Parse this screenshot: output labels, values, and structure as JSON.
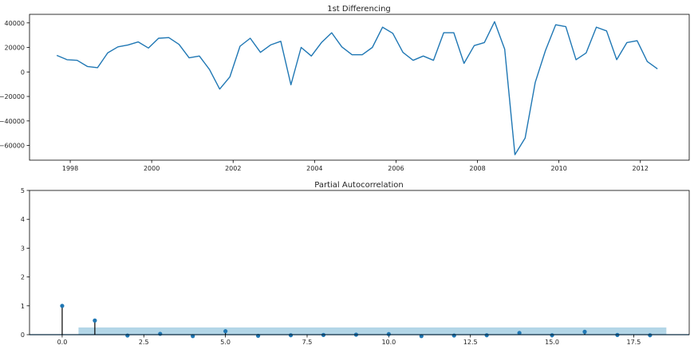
{
  "chart_data": [
    {
      "type": "line",
      "title": "1st Differencing",
      "xlabel": "",
      "ylabel": "",
      "xlim": [
        1997.0,
        2013.2
      ],
      "ylim": [
        -72000,
        47000
      ],
      "x_ticks": [
        "1998",
        "2000",
        "2002",
        "2004",
        "2006",
        "2008",
        "2010",
        "2012"
      ],
      "y_ticks": [
        "40000",
        "20000",
        "0",
        "−20000",
        "−40000",
        "−60000"
      ],
      "color": "#1f77b4",
      "series": [
        {
          "x": [
            1997.67,
            1997.92,
            1998.17,
            1998.42,
            1998.67,
            1998.92,
            1999.17,
            1999.42,
            1999.67,
            1999.92,
            2000.17,
            2000.42,
            2000.67,
            2000.92,
            2001.17,
            2001.42,
            2001.67,
            2001.92,
            2002.17,
            2002.42,
            2002.67,
            2002.92,
            2003.17,
            2003.42,
            2003.67,
            2003.92,
            2004.17,
            2004.42,
            2004.67,
            2004.92,
            2005.17,
            2005.42,
            2005.67,
            2005.92,
            2006.17,
            2006.42,
            2006.67,
            2006.92,
            2007.17,
            2007.42,
            2007.67,
            2007.92,
            2008.17,
            2008.42,
            2008.67,
            2008.92,
            2009.17,
            2009.42,
            2009.67,
            2009.92,
            2010.17,
            2010.42,
            2010.67,
            2010.92,
            2011.17,
            2011.42,
            2011.67,
            2011.92,
            2012.17,
            2012.42
          ],
          "values": [
            13500,
            10000,
            9500,
            4500,
            3500,
            15500,
            20500,
            22000,
            24500,
            19500,
            27500,
            28000,
            22500,
            11500,
            13000,
            2000,
            -14000,
            -4000,
            21000,
            27500,
            16000,
            22000,
            25000,
            -10500,
            20000,
            13000,
            24000,
            32000,
            20500,
            14000,
            14000,
            20000,
            36500,
            31500,
            16000,
            9500,
            13000,
            9500,
            32000,
            32000,
            7000,
            21500,
            24000,
            41000,
            18500,
            -67500,
            -54000,
            -8500,
            17500,
            38500,
            37000,
            10000,
            15500,
            36500,
            33500,
            10000,
            24000,
            25500,
            8500,
            2500
          ]
        }
      ]
    },
    {
      "type": "stem",
      "title": "Partial Autocorrelation",
      "xlabel": "",
      "ylabel": "",
      "xlim": [
        -1.0,
        19.2
      ],
      "ylim": [
        0,
        5
      ],
      "x_ticks": [
        "0.0",
        "2.5",
        "5.0",
        "7.5",
        "10.0",
        "12.5",
        "15.0",
        "17.5"
      ],
      "y_ticks": [
        "0",
        "1",
        "2",
        "3",
        "4",
        "5"
      ],
      "confidence_band": [
        0.5,
        18.5,
        0.25
      ],
      "band_color": "#a6cfe3",
      "marker_color": "#1f77b4",
      "lags": [
        0,
        1,
        2,
        3,
        4,
        5,
        6,
        7,
        8,
        9,
        10,
        11,
        12,
        13,
        14,
        15,
        16,
        17,
        18
      ],
      "values": [
        1.0,
        0.49,
        -0.03,
        0.03,
        -0.05,
        0.12,
        -0.04,
        -0.02,
        -0.01,
        0.0,
        0.02,
        -0.05,
        -0.03,
        -0.02,
        0.06,
        -0.02,
        0.1,
        -0.01,
        -0.02
      ]
    }
  ]
}
